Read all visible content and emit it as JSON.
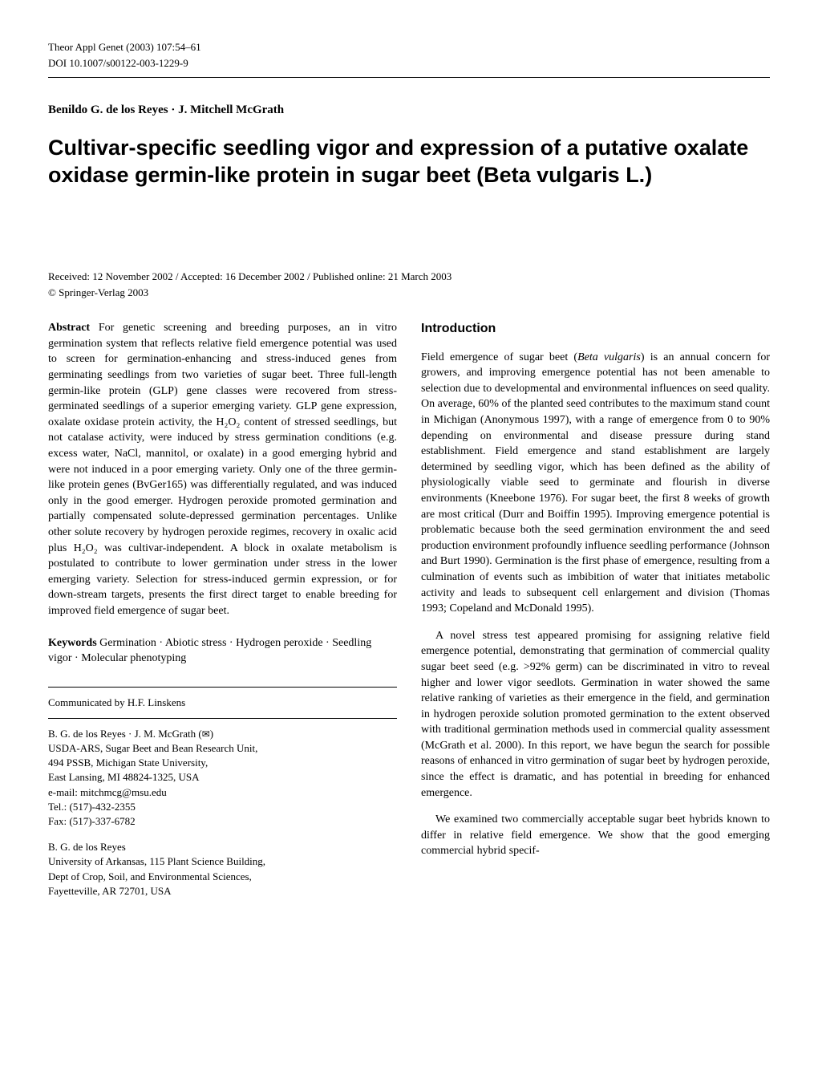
{
  "header": {
    "journal_ref": "Theor Appl Genet (2003) 107:54–61",
    "doi": "DOI 10.1007/s00122-003-1229-9"
  },
  "authors": "Benildo G. de los Reyes · J. Mitchell McGrath",
  "title": "Cultivar-specific seedling vigor and expression of a putative oxalate oxidase germin-like protein in sugar beet (Beta vulgaris L.)",
  "received": "Received: 12 November 2002 / Accepted: 16 December 2002 / Published online: 21 March 2003",
  "copyright": "© Springer-Verlag 2003",
  "abstract": {
    "label": "Abstract",
    "text": " For genetic screening and breeding purposes, an in vitro germination system that reflects relative field emergence potential was used to screen for germination-enhancing and stress-induced genes from germinating seedlings from two varieties of sugar beet. Three full-length germin-like protein (GLP) gene classes were recovered from stress-germinated seedlings of a superior emerging variety. GLP gene expression, oxalate oxidase protein activity, the H₂O₂ content of stressed seedlings, but not catalase activity, were induced by stress germination conditions (e.g. excess water, NaCl, mannitol, or oxalate) in a good emerging hybrid and were not induced in a poor emerging variety. Only one of the three germin-like protein genes (BvGer165) was differentially regulated, and was induced only in the good emerger. Hydrogen peroxide promoted germination and partially compensated solute-depressed germination percentages. Unlike other solute recovery by hydrogen peroxide regimes, recovery in oxalic acid plus H₂O₂ was cultivar-independent. A block in oxalate metabolism is postulated to contribute to lower germination under stress in the lower emerging variety. Selection for stress-induced germin expression, or for down-stream targets, presents the first direct target to enable breeding for improved field emergence of sugar beet."
  },
  "keywords": {
    "label": "Keywords",
    "text": " Germination · Abiotic stress · Hydrogen peroxide · Seedling vigor · Molecular phenotyping"
  },
  "communicated": "Communicated by H.F. Linskens",
  "affiliation1": {
    "line1": "B. G. de los Reyes · J. M. McGrath (",
    "line1b": ")",
    "line2": "USDA-ARS, Sugar Beet and Bean Research Unit,",
    "line3": "494 PSSB, Michigan State University,",
    "line4": "East Lansing, MI 48824-1325, USA",
    "line5": "e-mail: mitchmcg@msu.edu",
    "line6": "Tel.: (517)-432-2355",
    "line7": "Fax: (517)-337-6782"
  },
  "affiliation2": {
    "line1": "B. G. de los Reyes",
    "line2": "University of Arkansas, 115 Plant Science Building,",
    "line3": "Dept of Crop, Soil, and Environmental Sciences,",
    "line4": "Fayetteville, AR 72701, USA"
  },
  "introduction": {
    "heading": "Introduction",
    "p1a": "Field emergence of sugar beet (",
    "p1_italic": "Beta vulgaris",
    "p1b": ") is an annual concern for growers, and improving emergence potential has not been amenable to selection due to developmental and environmental influences on seed quality. On average, 60% of the planted seed contributes to the maximum stand count in Michigan (Anonymous 1997), with a range of emergence from 0 to 90% depending on environmental and disease pressure during stand establishment. Field emergence and stand establishment are largely determined by seedling vigor, which has been defined as the ability of physiologically viable seed to germinate and flourish in diverse environments (Kneebone 1976). For sugar beet, the first 8 weeks of growth are most critical (Durr and Boiffin 1995). Improving emergence potential is problematic because both the seed germination environment the and seed production environment profoundly influence seedling performance (Johnson and Burt 1990). Germination is the first phase of emergence, resulting from a culmination of events such as imbibition of water that initiates metabolic activity and leads to subsequent cell enlargement and division (Thomas 1993; Copeland and McDonald 1995).",
    "p2": "A novel stress test appeared promising for assigning relative field emergence potential, demonstrating that germination of commercial quality sugar beet seed (e.g. >92% germ) can be discriminated in vitro to reveal higher and lower vigor seedlots. Germination in water showed the same relative ranking of varieties as their emergence in the field, and germination in hydrogen peroxide solution promoted germination to the extent observed with traditional germination methods used in commercial quality assessment (McGrath et al. 2000). In this report, we have begun the search for possible reasons of enhanced in vitro germination of sugar beet by hydrogen peroxide, since the effect is dramatic, and has potential in breeding for enhanced emergence.",
    "p3": "We examined two commercially acceptable sugar beet hybrids known to differ in relative field emergence. We show that the good emerging commercial hybrid specif-"
  }
}
